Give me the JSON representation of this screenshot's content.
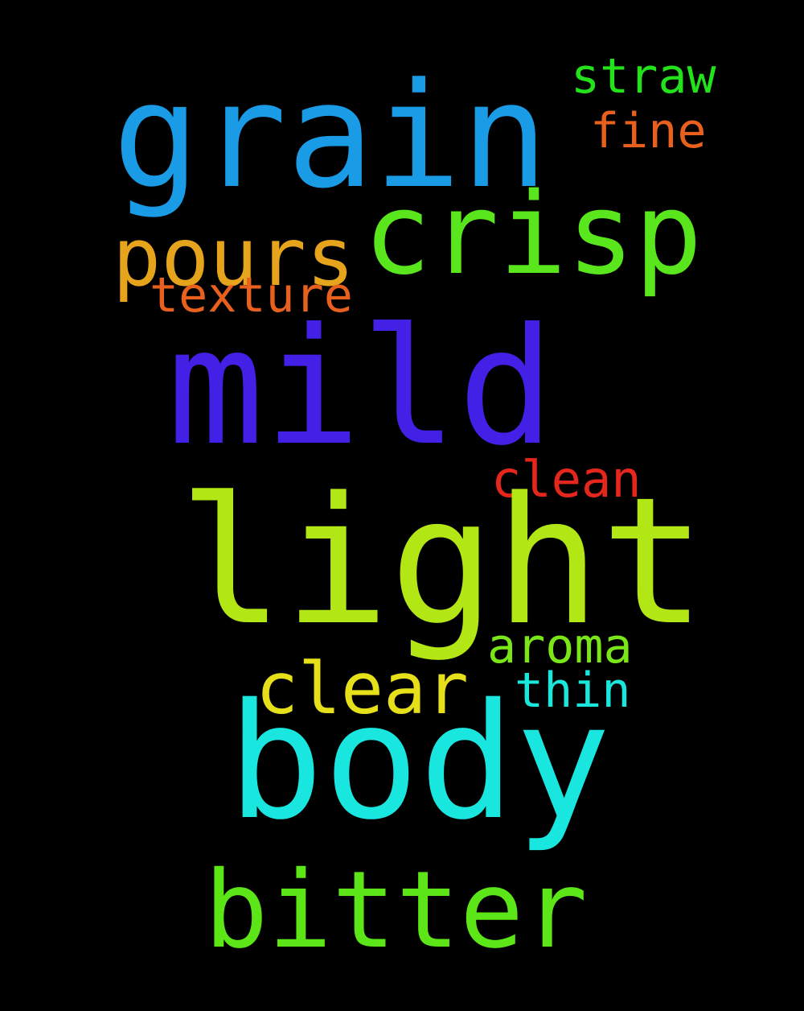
{
  "word_cloud": {
    "background": "#000000",
    "words": [
      {
        "id": "grain",
        "text": "grain",
        "color": "#1a9be6"
      },
      {
        "id": "straw",
        "text": "straw",
        "color": "#24e21a"
      },
      {
        "id": "fine",
        "text": "fine",
        "color": "#e8601e"
      },
      {
        "id": "crisp",
        "text": "crisp",
        "color": "#59e61d"
      },
      {
        "id": "pours",
        "text": "pours",
        "color": "#e6a41d"
      },
      {
        "id": "texture",
        "text": "texture",
        "color": "#e8601e"
      },
      {
        "id": "mild",
        "text": "mild",
        "color": "#4220e6"
      },
      {
        "id": "clean",
        "text": "clean",
        "color": "#e5261c"
      },
      {
        "id": "light",
        "text": "light",
        "color": "#b2e615"
      },
      {
        "id": "aroma",
        "text": "aroma",
        "color": "#7be617"
      },
      {
        "id": "clear",
        "text": "clear",
        "color": "#e6e01a"
      },
      {
        "id": "thin",
        "text": "thin",
        "color": "#1ae6dc"
      },
      {
        "id": "body",
        "text": "body",
        "color": "#1ae6e0"
      },
      {
        "id": "bitter",
        "text": "bitter",
        "color": "#5ce617"
      }
    ]
  }
}
